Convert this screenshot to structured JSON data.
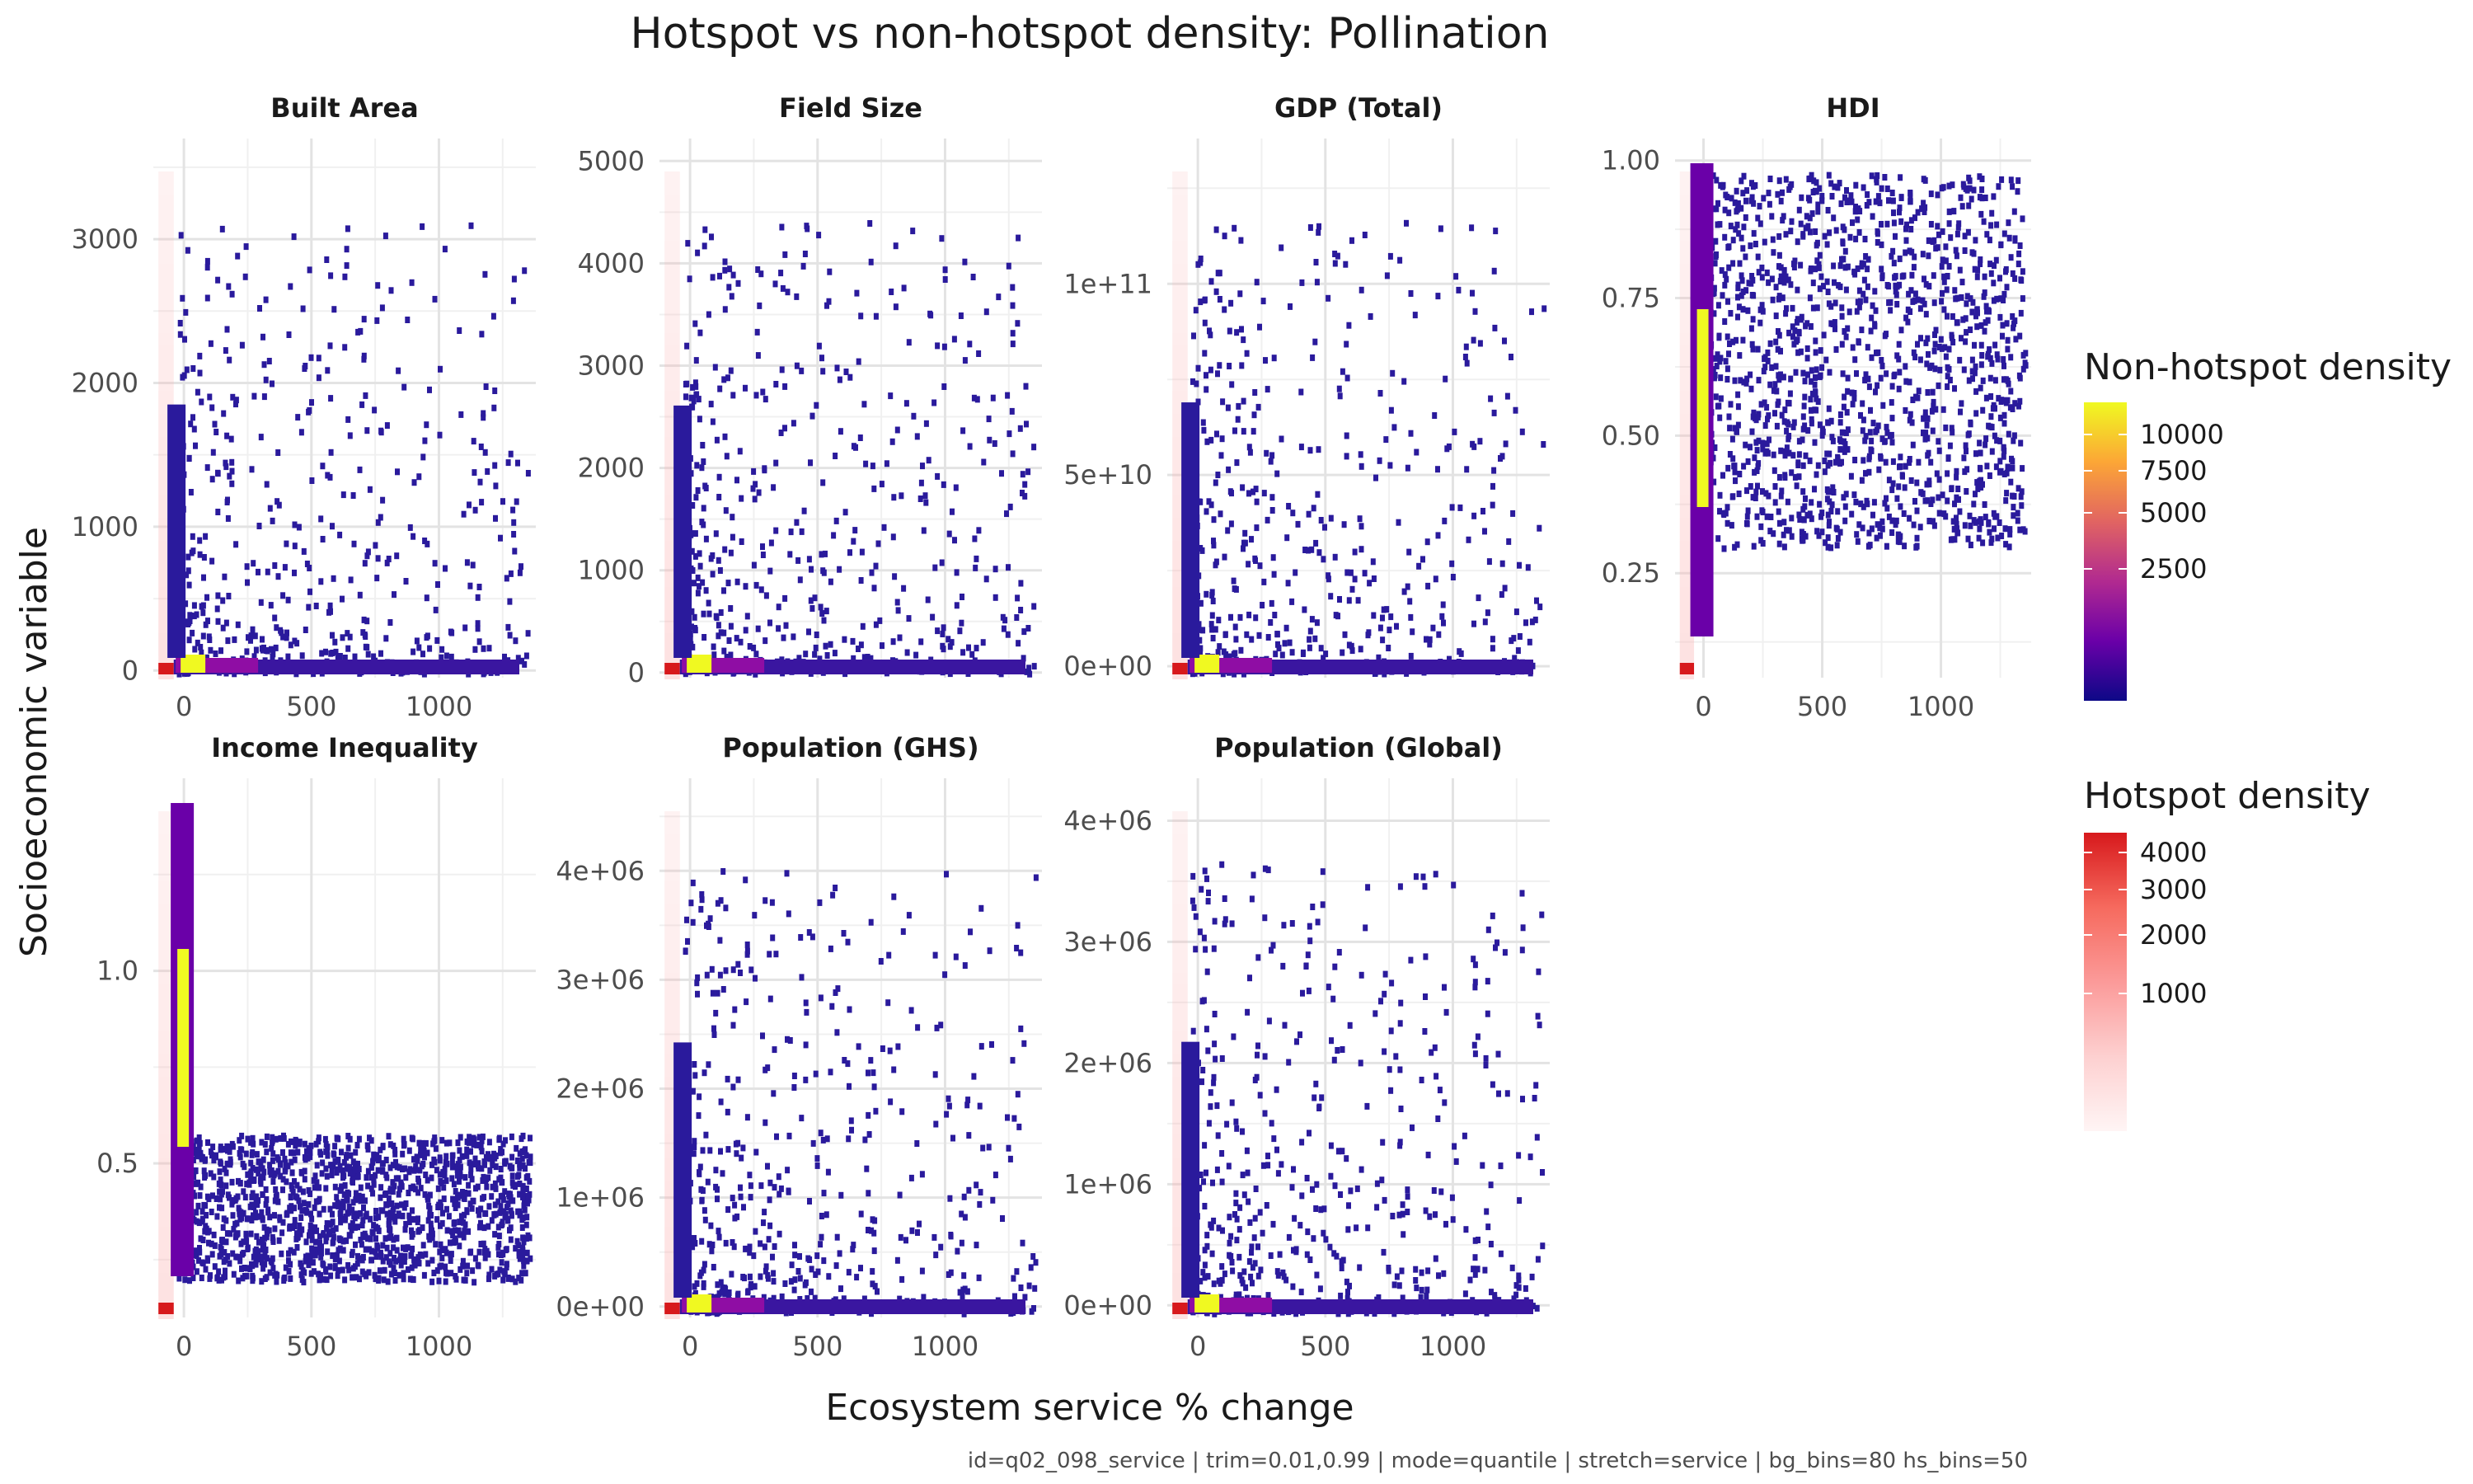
{
  "title": "Hotspot vs non-hotspot density: Pollination",
  "xlabel": "Ecosystem service % change",
  "ylabel": "Socioeconomic variable",
  "caption": "id=q02_098_service | trim=0.01,0.99 | mode=quantile | stretch=service | bg_bins=80 hs_bins=50",
  "legends": {
    "non_hotspot": {
      "title": "Non-hotspot density",
      "breaks": [
        "10000",
        "7500",
        "5000",
        "2500"
      ],
      "colors": [
        "#0d0887",
        "#6a00a8",
        "#b12a90",
        "#e16462",
        "#fca636",
        "#f0f921"
      ]
    },
    "hotspot": {
      "title": "Hotspot density",
      "breaks": [
        "4000",
        "3000",
        "2000",
        "1000"
      ],
      "colors": [
        "#fff5f5",
        "#fdd0d0",
        "#fb9a99",
        "#f66a5e",
        "#d7191c"
      ]
    }
  },
  "chart_data": [
    {
      "type": "heatmap",
      "title": "Built Area",
      "xlim": [
        -120,
        1380
      ],
      "ylim": [
        -50,
        3700
      ],
      "xticks": [
        "0",
        "500",
        "1000"
      ],
      "xtick_values": [
        0,
        500,
        1000
      ],
      "yticks": [
        "0",
        "1000",
        "2000",
        "3000"
      ],
      "ytick_values": [
        0,
        1000,
        2000,
        3000
      ],
      "show_x_ticks": true
    },
    {
      "type": "heatmap",
      "title": "Field Size",
      "xlim": [
        -120,
        1380
      ],
      "ylim": [
        -50,
        5220
      ],
      "xticks": [
        "0",
        "500",
        "1000"
      ],
      "xtick_values": [
        0,
        500,
        1000
      ],
      "yticks": [
        "0",
        "1000",
        "2000",
        "3000",
        "4000",
        "5000"
      ],
      "ytick_values": [
        0,
        1000,
        2000,
        3000,
        4000,
        5000
      ],
      "show_x_ticks": false
    },
    {
      "type": "heatmap",
      "title": "GDP (Total)",
      "xlim": [
        -120,
        1380
      ],
      "ylim": [
        -3000000000.0,
        138000000000.0
      ],
      "xticks": [
        "0",
        "500",
        "1000"
      ],
      "xtick_values": [
        0,
        500,
        1000
      ],
      "yticks": [
        "0e+00",
        "5e+10",
        "1e+11"
      ],
      "ytick_values": [
        0,
        50000000000.0,
        100000000000.0
      ],
      "show_x_ticks": false
    },
    {
      "type": "heatmap",
      "title": "HDI",
      "xlim": [
        -120,
        1380
      ],
      "ylim": [
        0.06,
        1.04
      ],
      "xticks": [
        "0",
        "500",
        "1000"
      ],
      "xtick_values": [
        0,
        500,
        1000
      ],
      "yticks": [
        "0.25",
        "0.50",
        "0.75",
        "1.00"
      ],
      "ytick_values": [
        0.25,
        0.5,
        0.75,
        1.0
      ],
      "show_x_ticks": true
    },
    {
      "type": "heatmap",
      "title": "Income Inequality",
      "xlim": [
        -120,
        1380
      ],
      "ylim": [
        0.1,
        1.5
      ],
      "xticks": [
        "0",
        "500",
        "1000"
      ],
      "xtick_values": [
        0,
        500,
        1000
      ],
      "yticks": [
        "0.5",
        "1.0"
      ],
      "ytick_values": [
        0.5,
        1.0
      ],
      "show_x_ticks": true
    },
    {
      "type": "heatmap",
      "title": "Population (GHS)",
      "xlim": [
        -120,
        1380
      ],
      "ylim": [
        -100000.0,
        4850000.0
      ],
      "xticks": [
        "0",
        "500",
        "1000"
      ],
      "xtick_values": [
        0,
        500,
        1000
      ],
      "yticks": [
        "0e+00",
        "1e+06",
        "2e+06",
        "3e+06",
        "4e+06"
      ],
      "ytick_values": [
        0,
        1000000.0,
        2000000.0,
        3000000.0,
        4000000.0
      ],
      "show_x_ticks": true
    },
    {
      "type": "heatmap",
      "title": "Population (Global)",
      "xlim": [
        -120,
        1380
      ],
      "ylim": [
        -100000.0,
        4350000.0
      ],
      "xticks": [
        "0",
        "500",
        "1000"
      ],
      "xtick_values": [
        0,
        500,
        1000
      ],
      "yticks": [
        "0e+00",
        "1e+06",
        "2e+06",
        "3e+06",
        "4e+06"
      ],
      "ytick_values": [
        0,
        1000000.0,
        2000000.0,
        3000000.0,
        4000000.0
      ],
      "show_x_ticks": true
    }
  ]
}
